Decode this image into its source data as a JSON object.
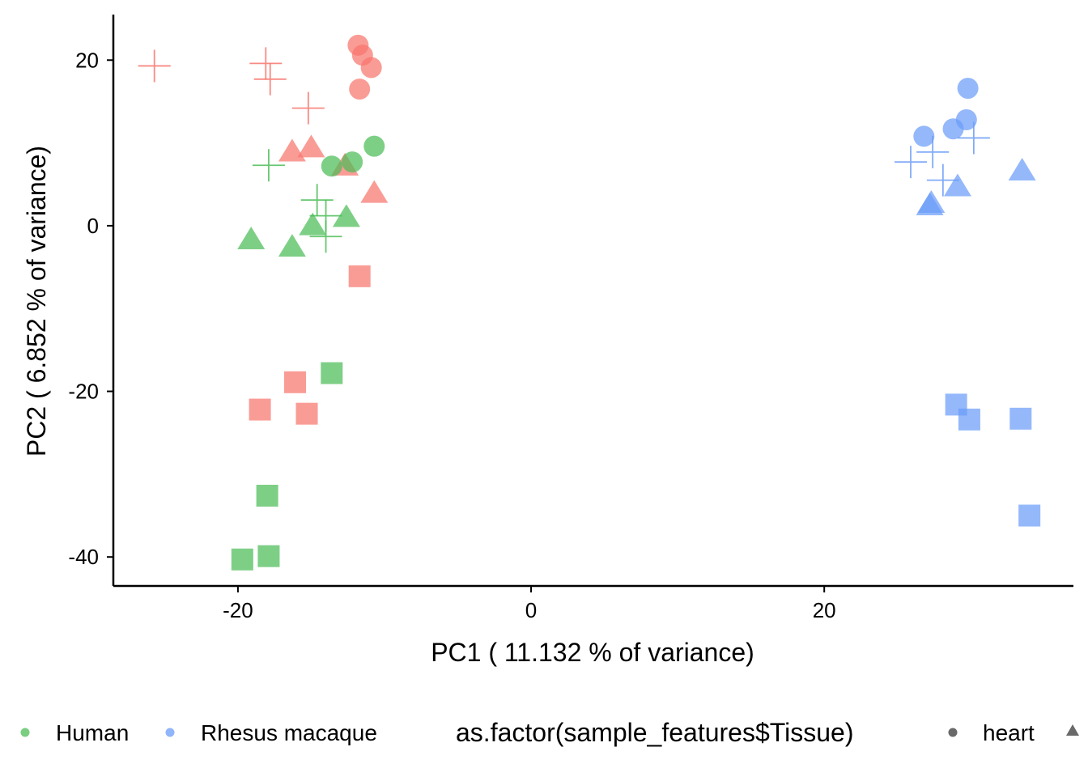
{
  "chart_data": {
    "type": "scatter",
    "title": "",
    "xlabel": "PC1 ( 11.132 % of variance)",
    "ylabel": "PC2 ( 6.852 % of variance)",
    "xlim": [
      -28.5,
      37
    ],
    "ylim": [
      -43.5,
      25.5
    ],
    "x_ticks": [
      -20,
      0,
      20
    ],
    "y_ticks": [
      -40,
      -20,
      0,
      20
    ],
    "x_tick_labels": [
      "-20",
      "0",
      "20"
    ],
    "y_tick_labels": [
      "-40",
      "-20",
      "0",
      "20"
    ],
    "grid": false,
    "colors": {
      "Human": "#4cbd57",
      "Rhesus macaque": "#6b9cf8",
      "red-group": "#f8766d"
    },
    "legend": {
      "position": "bottom",
      "color_items": [
        {
          "label": "Human",
          "color": "#4cbd57"
        },
        {
          "label": "Rhesus macaque",
          "color": "#6b9cf8"
        }
      ],
      "shape_title": "as.factor(sample_features$Tissue)",
      "shape_items": [
        {
          "label": "heart",
          "shape": "circle"
        },
        {
          "label": "",
          "shape": "triangle"
        }
      ]
    },
    "series": [
      {
        "group": "red-group",
        "color": "#f8766d",
        "points": [
          {
            "x": -11.8,
            "y": 21.8,
            "shape": "circle"
          },
          {
            "x": -11.5,
            "y": 20.6,
            "shape": "circle"
          },
          {
            "x": -10.9,
            "y": 19.1,
            "shape": "circle"
          },
          {
            "x": -11.7,
            "y": 16.5,
            "shape": "circle"
          },
          {
            "x": -25.7,
            "y": 19.3,
            "shape": "plus"
          },
          {
            "x": -18.1,
            "y": 19.6,
            "shape": "plus"
          },
          {
            "x": -17.8,
            "y": 17.7,
            "shape": "plus"
          },
          {
            "x": -15.2,
            "y": 14.2,
            "shape": "plus"
          },
          {
            "x": -16.3,
            "y": 8.8,
            "shape": "triangle"
          },
          {
            "x": -15.0,
            "y": 9.3,
            "shape": "triangle"
          },
          {
            "x": -12.7,
            "y": 7.1,
            "shape": "triangle"
          },
          {
            "x": -10.7,
            "y": 3.8,
            "shape": "triangle"
          },
          {
            "x": -11.7,
            "y": -6.1,
            "shape": "square"
          },
          {
            "x": -16.1,
            "y": -18.9,
            "shape": "square"
          },
          {
            "x": -18.5,
            "y": -22.2,
            "shape": "square"
          },
          {
            "x": -15.3,
            "y": -22.7,
            "shape": "square"
          }
        ]
      },
      {
        "group": "Human",
        "color": "#4cbd57",
        "points": [
          {
            "x": -10.7,
            "y": 9.6,
            "shape": "circle"
          },
          {
            "x": -12.2,
            "y": 7.7,
            "shape": "circle"
          },
          {
            "x": -13.6,
            "y": 7.2,
            "shape": "circle"
          },
          {
            "x": -17.9,
            "y": 7.3,
            "shape": "plus"
          },
          {
            "x": -14.6,
            "y": 3.1,
            "shape": "plus"
          },
          {
            "x": -14.0,
            "y": 1.2,
            "shape": "plus"
          },
          {
            "x": -14.0,
            "y": -1.3,
            "shape": "plus"
          },
          {
            "x": -12.6,
            "y": 0.9,
            "shape": "triangle"
          },
          {
            "x": -14.9,
            "y": -0.1,
            "shape": "triangle"
          },
          {
            "x": -19.1,
            "y": -1.8,
            "shape": "triangle"
          },
          {
            "x": -16.3,
            "y": -2.7,
            "shape": "triangle"
          },
          {
            "x": -13.6,
            "y": -17.8,
            "shape": "square"
          },
          {
            "x": -18.0,
            "y": -32.6,
            "shape": "square"
          },
          {
            "x": -17.9,
            "y": -39.9,
            "shape": "square"
          },
          {
            "x": -19.7,
            "y": -40.3,
            "shape": "square"
          }
        ]
      },
      {
        "group": "Rhesus macaque",
        "color": "#6b9cf8",
        "points": [
          {
            "x": 29.8,
            "y": 16.6,
            "shape": "circle"
          },
          {
            "x": 29.7,
            "y": 12.8,
            "shape": "circle"
          },
          {
            "x": 28.8,
            "y": 11.7,
            "shape": "circle"
          },
          {
            "x": 26.8,
            "y": 10.8,
            "shape": "circle"
          },
          {
            "x": 30.2,
            "y": 10.6,
            "shape": "plus"
          },
          {
            "x": 27.4,
            "y": 8.9,
            "shape": "plus"
          },
          {
            "x": 25.9,
            "y": 7.7,
            "shape": "plus"
          },
          {
            "x": 28.1,
            "y": 5.5,
            "shape": "plus"
          },
          {
            "x": 33.5,
            "y": 6.5,
            "shape": "triangle"
          },
          {
            "x": 29.1,
            "y": 4.6,
            "shape": "triangle"
          },
          {
            "x": 27.3,
            "y": 2.6,
            "shape": "triangle"
          },
          {
            "x": 27.2,
            "y": 2.3,
            "shape": "triangle"
          },
          {
            "x": 29.0,
            "y": -21.6,
            "shape": "square"
          },
          {
            "x": 29.9,
            "y": -23.4,
            "shape": "square"
          },
          {
            "x": 33.4,
            "y": -23.3,
            "shape": "square"
          },
          {
            "x": 34.0,
            "y": -35.0,
            "shape": "square"
          }
        ]
      }
    ]
  }
}
